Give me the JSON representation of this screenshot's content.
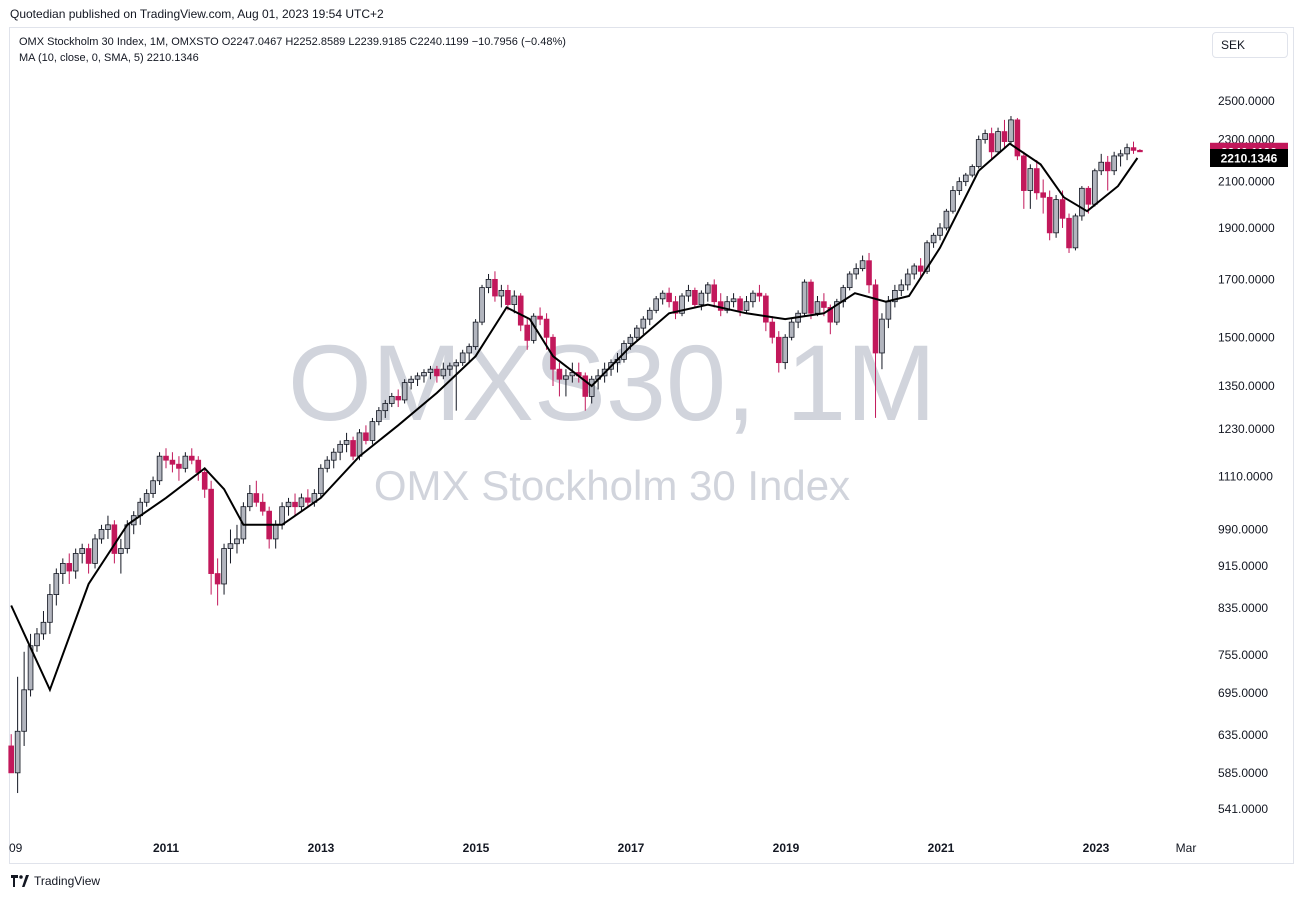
{
  "header": {
    "published": "Quotedian published on TradingView.com, Aug 01, 2023 19:54 UTC+2"
  },
  "legend": {
    "line1": "OMX Stockholm 30 Index, 1M, OMXSTO  O2247.0467  H2252.8589  L2239.9185  C2240.1199  −10.7956 (−0.48%)",
    "line2": "MA (10, close, 0, SMA, 5)  2210.1346"
  },
  "currency": "SEK",
  "watermark": {
    "symbol": "OMXS30, 1M",
    "name": "OMX Stockholm 30 Index"
  },
  "footer": {
    "brand": "TradingView"
  },
  "colors": {
    "up": "#b2b5be",
    "down": "#c2185b",
    "ma": "#000000",
    "last_price_bg": "#c2185b",
    "ma_label_bg": "#000000"
  },
  "chart_data": {
    "type": "candlestick",
    "title": "OMX Stockholm 30 Index",
    "interval": "1M",
    "y_scale": "log",
    "y_ticks": [
      "2500.0000",
      "2300.0000",
      "2100.0000",
      "1900.0000",
      "1700.0000",
      "1500.0000",
      "1350.0000",
      "1230.0000",
      "1110.0000",
      "990.0000",
      "915.0000",
      "835.0000",
      "755.0000",
      "695.0000",
      "635.0000",
      "585.0000",
      "541.0000"
    ],
    "x_ticks": [
      "09",
      "2011",
      "2013",
      "2015",
      "2017",
      "2019",
      "2021",
      "2023",
      "Mar"
    ],
    "last_price": "2240.1199",
    "ma_value": "2210.1346",
    "ma_points": [
      [
        2009.0,
        840
      ],
      [
        2009.5,
        700
      ],
      [
        2010.0,
        880
      ],
      [
        2010.5,
        1000
      ],
      [
        2011.0,
        1060
      ],
      [
        2011.5,
        1130
      ],
      [
        2011.75,
        1080
      ],
      [
        2012.0,
        1000
      ],
      [
        2012.5,
        1000
      ],
      [
        2013.0,
        1060
      ],
      [
        2013.5,
        1160
      ],
      [
        2014.0,
        1240
      ],
      [
        2014.5,
        1330
      ],
      [
        2015.0,
        1440
      ],
      [
        2015.4,
        1600
      ],
      [
        2015.7,
        1560
      ],
      [
        2016.0,
        1440
      ],
      [
        2016.5,
        1350
      ],
      [
        2017.0,
        1470
      ],
      [
        2017.5,
        1580
      ],
      [
        2018.0,
        1610
      ],
      [
        2018.5,
        1580
      ],
      [
        2019.0,
        1560
      ],
      [
        2019.5,
        1580
      ],
      [
        2019.9,
        1650
      ],
      [
        2020.3,
        1620
      ],
      [
        2020.6,
        1640
      ],
      [
        2021.0,
        1820
      ],
      [
        2021.5,
        2150
      ],
      [
        2021.9,
        2280
      ],
      [
        2022.3,
        2180
      ],
      [
        2022.6,
        2030
      ],
      [
        2022.9,
        1970
      ],
      [
        2023.3,
        2080
      ],
      [
        2023.55,
        2210
      ]
    ],
    "candles": [
      [
        2009.0,
        620,
        636,
        590,
        585
      ],
      [
        2009.083,
        585,
        720,
        560,
        640
      ],
      [
        2009.167,
        640,
        760,
        620,
        700
      ],
      [
        2009.25,
        700,
        790,
        690,
        770
      ],
      [
        2009.333,
        770,
        800,
        760,
        790
      ],
      [
        2009.417,
        790,
        830,
        780,
        810
      ],
      [
        2009.5,
        810,
        880,
        790,
        860
      ],
      [
        2009.583,
        860,
        910,
        840,
        900
      ],
      [
        2009.667,
        900,
        930,
        880,
        920
      ],
      [
        2009.75,
        920,
        940,
        880,
        905
      ],
      [
        2009.833,
        905,
        950,
        890,
        940
      ],
      [
        2009.917,
        940,
        960,
        920,
        950
      ],
      [
        2010.0,
        950,
        960,
        900,
        920
      ],
      [
        2010.083,
        920,
        980,
        910,
        970
      ],
      [
        2010.167,
        970,
        1000,
        960,
        990
      ],
      [
        2010.25,
        990,
        1020,
        970,
        1000
      ],
      [
        2010.333,
        1000,
        1010,
        920,
        940
      ],
      [
        2010.417,
        940,
        970,
        900,
        950
      ],
      [
        2010.5,
        950,
        1010,
        940,
        1000
      ],
      [
        2010.583,
        1000,
        1030,
        980,
        1020
      ],
      [
        2010.667,
        1020,
        1060,
        1000,
        1050
      ],
      [
        2010.75,
        1050,
        1080,
        1040,
        1070
      ],
      [
        2010.833,
        1070,
        1110,
        1060,
        1100
      ],
      [
        2010.917,
        1100,
        1170,
        1090,
        1160
      ],
      [
        2011.0,
        1160,
        1180,
        1130,
        1150
      ],
      [
        2011.083,
        1150,
        1170,
        1120,
        1140
      ],
      [
        2011.167,
        1140,
        1160,
        1100,
        1130
      ],
      [
        2011.25,
        1130,
        1170,
        1120,
        1160
      ],
      [
        2011.333,
        1160,
        1180,
        1140,
        1150
      ],
      [
        2011.417,
        1150,
        1160,
        1100,
        1120
      ],
      [
        2011.5,
        1120,
        1130,
        1060,
        1080
      ],
      [
        2011.583,
        1080,
        1100,
        860,
        900
      ],
      [
        2011.667,
        900,
        930,
        840,
        880
      ],
      [
        2011.75,
        880,
        960,
        860,
        950
      ],
      [
        2011.833,
        950,
        990,
        920,
        960
      ],
      [
        2011.917,
        960,
        1000,
        940,
        970
      ],
      [
        2012.0,
        970,
        1050,
        960,
        1040
      ],
      [
        2012.083,
        1040,
        1090,
        1030,
        1070
      ],
      [
        2012.167,
        1070,
        1100,
        1040,
        1050
      ],
      [
        2012.25,
        1050,
        1070,
        1020,
        1030
      ],
      [
        2012.333,
        1030,
        1040,
        950,
        970
      ],
      [
        2012.417,
        970,
        1010,
        950,
        1000
      ],
      [
        2012.5,
        1000,
        1050,
        990,
        1040
      ],
      [
        2012.583,
        1040,
        1060,
        1020,
        1050
      ],
      [
        2012.667,
        1050,
        1070,
        1020,
        1040
      ],
      [
        2012.75,
        1040,
        1070,
        1030,
        1060
      ],
      [
        2012.833,
        1060,
        1080,
        1040,
        1050
      ],
      [
        2012.917,
        1050,
        1080,
        1040,
        1070
      ],
      [
        2013.0,
        1070,
        1140,
        1060,
        1130
      ],
      [
        2013.083,
        1130,
        1160,
        1120,
        1150
      ],
      [
        2013.167,
        1150,
        1180,
        1130,
        1170
      ],
      [
        2013.25,
        1170,
        1200,
        1150,
        1190
      ],
      [
        2013.333,
        1190,
        1220,
        1170,
        1200
      ],
      [
        2013.417,
        1200,
        1210,
        1150,
        1160
      ],
      [
        2013.5,
        1160,
        1230,
        1150,
        1220
      ],
      [
        2013.583,
        1220,
        1240,
        1190,
        1200
      ],
      [
        2013.667,
        1200,
        1260,
        1190,
        1250
      ],
      [
        2013.75,
        1250,
        1290,
        1240,
        1280
      ],
      [
        2013.833,
        1280,
        1310,
        1260,
        1300
      ],
      [
        2013.917,
        1300,
        1330,
        1290,
        1320
      ],
      [
        2014.0,
        1320,
        1340,
        1290,
        1310
      ],
      [
        2014.083,
        1310,
        1370,
        1300,
        1360
      ],
      [
        2014.167,
        1360,
        1380,
        1340,
        1370
      ],
      [
        2014.25,
        1370,
        1390,
        1350,
        1380
      ],
      [
        2014.333,
        1380,
        1400,
        1360,
        1390
      ],
      [
        2014.417,
        1390,
        1410,
        1370,
        1400
      ],
      [
        2014.5,
        1400,
        1410,
        1360,
        1380
      ],
      [
        2014.583,
        1380,
        1420,
        1370,
        1400
      ],
      [
        2014.667,
        1400,
        1420,
        1380,
        1410
      ],
      [
        2014.75,
        1410,
        1430,
        1280,
        1420
      ],
      [
        2014.833,
        1420,
        1460,
        1410,
        1450
      ],
      [
        2014.917,
        1450,
        1480,
        1420,
        1470
      ],
      [
        2015.0,
        1470,
        1560,
        1460,
        1550
      ],
      [
        2015.083,
        1550,
        1680,
        1540,
        1670
      ],
      [
        2015.167,
        1670,
        1720,
        1650,
        1700
      ],
      [
        2015.25,
        1700,
        1730,
        1620,
        1640
      ],
      [
        2015.333,
        1640,
        1680,
        1600,
        1660
      ],
      [
        2015.417,
        1660,
        1680,
        1590,
        1610
      ],
      [
        2015.5,
        1610,
        1660,
        1580,
        1640
      ],
      [
        2015.583,
        1640,
        1650,
        1520,
        1540
      ],
      [
        2015.667,
        1540,
        1560,
        1460,
        1490
      ],
      [
        2015.75,
        1490,
        1580,
        1480,
        1570
      ],
      [
        2015.833,
        1570,
        1600,
        1540,
        1560
      ],
      [
        2015.917,
        1560,
        1580,
        1460,
        1500
      ],
      [
        2016.0,
        1500,
        1510,
        1350,
        1400
      ],
      [
        2016.083,
        1400,
        1420,
        1320,
        1370
      ],
      [
        2016.167,
        1370,
        1400,
        1320,
        1380
      ],
      [
        2016.25,
        1380,
        1420,
        1360,
        1390
      ],
      [
        2016.333,
        1390,
        1420,
        1360,
        1380
      ],
      [
        2016.417,
        1380,
        1390,
        1280,
        1320
      ],
      [
        2016.5,
        1320,
        1380,
        1300,
        1370
      ],
      [
        2016.583,
        1370,
        1400,
        1340,
        1380
      ],
      [
        2016.667,
        1380,
        1420,
        1360,
        1400
      ],
      [
        2016.75,
        1400,
        1430,
        1380,
        1420
      ],
      [
        2016.833,
        1420,
        1450,
        1390,
        1430
      ],
      [
        2016.917,
        1430,
        1490,
        1420,
        1480
      ],
      [
        2017.0,
        1480,
        1510,
        1460,
        1500
      ],
      [
        2017.083,
        1500,
        1540,
        1490,
        1530
      ],
      [
        2017.167,
        1530,
        1570,
        1510,
        1560
      ],
      [
        2017.25,
        1560,
        1600,
        1540,
        1590
      ],
      [
        2017.333,
        1590,
        1640,
        1580,
        1630
      ],
      [
        2017.417,
        1630,
        1660,
        1610,
        1650
      ],
      [
        2017.5,
        1650,
        1670,
        1600,
        1620
      ],
      [
        2017.583,
        1620,
        1640,
        1560,
        1580
      ],
      [
        2017.667,
        1580,
        1650,
        1570,
        1640
      ],
      [
        2017.75,
        1640,
        1680,
        1620,
        1660
      ],
      [
        2017.833,
        1660,
        1670,
        1600,
        1610
      ],
      [
        2017.917,
        1610,
        1660,
        1590,
        1650
      ],
      [
        2018.0,
        1650,
        1690,
        1620,
        1680
      ],
      [
        2018.083,
        1680,
        1700,
        1600,
        1620
      ],
      [
        2018.167,
        1620,
        1650,
        1570,
        1590
      ],
      [
        2018.25,
        1590,
        1640,
        1580,
        1620
      ],
      [
        2018.333,
        1620,
        1650,
        1600,
        1630
      ],
      [
        2018.417,
        1630,
        1640,
        1570,
        1590
      ],
      [
        2018.5,
        1590,
        1640,
        1580,
        1620
      ],
      [
        2018.583,
        1620,
        1660,
        1600,
        1650
      ],
      [
        2018.667,
        1650,
        1680,
        1620,
        1640
      ],
      [
        2018.75,
        1640,
        1650,
        1520,
        1550
      ],
      [
        2018.833,
        1550,
        1570,
        1480,
        1500
      ],
      [
        2018.917,
        1500,
        1520,
        1390,
        1420
      ],
      [
        2019.0,
        1420,
        1510,
        1400,
        1500
      ],
      [
        2019.083,
        1500,
        1560,
        1490,
        1550
      ],
      [
        2019.167,
        1550,
        1590,
        1530,
        1580
      ],
      [
        2019.25,
        1580,
        1700,
        1570,
        1690
      ],
      [
        2019.333,
        1690,
        1700,
        1560,
        1580
      ],
      [
        2019.417,
        1580,
        1640,
        1570,
        1620
      ],
      [
        2019.5,
        1620,
        1650,
        1570,
        1600
      ],
      [
        2019.583,
        1600,
        1610,
        1510,
        1550
      ],
      [
        2019.667,
        1550,
        1630,
        1540,
        1620
      ],
      [
        2019.75,
        1620,
        1680,
        1600,
        1670
      ],
      [
        2019.833,
        1670,
        1730,
        1660,
        1720
      ],
      [
        2019.917,
        1720,
        1760,
        1700,
        1740
      ],
      [
        2020.0,
        1740,
        1790,
        1730,
        1770
      ],
      [
        2020.083,
        1770,
        1800,
        1650,
        1680
      ],
      [
        2020.167,
        1680,
        1700,
        1260,
        1450
      ],
      [
        2020.25,
        1450,
        1580,
        1400,
        1560
      ],
      [
        2020.333,
        1560,
        1640,
        1530,
        1620
      ],
      [
        2020.417,
        1620,
        1680,
        1600,
        1660
      ],
      [
        2020.5,
        1660,
        1700,
        1640,
        1680
      ],
      [
        2020.583,
        1680,
        1740,
        1660,
        1720
      ],
      [
        2020.667,
        1720,
        1760,
        1700,
        1750
      ],
      [
        2020.75,
        1750,
        1780,
        1700,
        1730
      ],
      [
        2020.833,
        1730,
        1850,
        1720,
        1840
      ],
      [
        2020.917,
        1840,
        1880,
        1820,
        1870
      ],
      [
        2021.0,
        1870,
        1920,
        1850,
        1900
      ],
      [
        2021.083,
        1900,
        1980,
        1890,
        1970
      ],
      [
        2021.167,
        1970,
        2080,
        1960,
        2060
      ],
      [
        2021.25,
        2060,
        2120,
        2040,
        2100
      ],
      [
        2021.333,
        2100,
        2140,
        2080,
        2130
      ],
      [
        2021.417,
        2130,
        2180,
        2120,
        2170
      ],
      [
        2021.5,
        2170,
        2320,
        2160,
        2300
      ],
      [
        2021.583,
        2300,
        2350,
        2280,
        2330
      ],
      [
        2021.667,
        2330,
        2360,
        2200,
        2240
      ],
      [
        2021.75,
        2240,
        2360,
        2230,
        2340
      ],
      [
        2021.833,
        2340,
        2400,
        2260,
        2290
      ],
      [
        2021.917,
        2290,
        2420,
        2280,
        2400
      ],
      [
        2022.0,
        2400,
        2410,
        2200,
        2220
      ],
      [
        2022.083,
        2220,
        2240,
        1980,
        2060
      ],
      [
        2022.167,
        2060,
        2180,
        1980,
        2160
      ],
      [
        2022.25,
        2160,
        2200,
        2020,
        2050
      ],
      [
        2022.333,
        2050,
        2110,
        1960,
        2030
      ],
      [
        2022.417,
        2030,
        2060,
        1850,
        1880
      ],
      [
        2022.5,
        1880,
        2040,
        1860,
        2020
      ],
      [
        2022.583,
        2020,
        2060,
        1900,
        1940
      ],
      [
        2022.667,
        1940,
        1960,
        1800,
        1820
      ],
      [
        2022.75,
        1820,
        1960,
        1810,
        1950
      ],
      [
        2022.833,
        1950,
        2080,
        1930,
        2070
      ],
      [
        2022.917,
        2070,
        2080,
        1960,
        2000
      ],
      [
        2023.0,
        2000,
        2160,
        1990,
        2150
      ],
      [
        2023.083,
        2150,
        2230,
        2130,
        2190
      ],
      [
        2023.167,
        2190,
        2220,
        2060,
        2150
      ],
      [
        2023.25,
        2150,
        2240,
        2130,
        2220
      ],
      [
        2023.333,
        2220,
        2250,
        2170,
        2230
      ],
      [
        2023.417,
        2230,
        2280,
        2200,
        2260
      ],
      [
        2023.5,
        2260,
        2290,
        2230,
        2247
      ],
      [
        2023.583,
        2247.0467,
        2252.8589,
        2239.9185,
        2240.1199
      ]
    ]
  }
}
